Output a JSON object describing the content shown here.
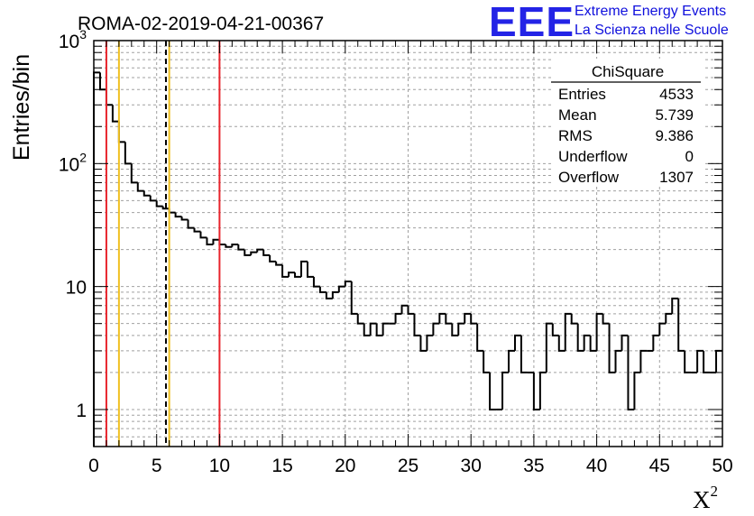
{
  "header": {
    "run_title": "ROMA-02-2019-04-21-00367",
    "logo_text": "EEE",
    "logo_line1": "Extreme Energy Events",
    "logo_line2": "La Scienza nelle Scuole",
    "logo_color": "#2323e6"
  },
  "stats": {
    "title": "ChiSquare",
    "rows": [
      {
        "label": "Entries",
        "value": "4533"
      },
      {
        "label": "Mean",
        "value": "5.739"
      },
      {
        "label": "RMS",
        "value": "9.386"
      },
      {
        "label": "Underflow",
        "value": "0"
      },
      {
        "label": "Overflow",
        "value": "1307"
      }
    ]
  },
  "chart_data": {
    "type": "histogram",
    "title": "ROMA-02-2019-04-21-00367",
    "xlabel": "X",
    "xlabel_superscript": "2",
    "ylabel": "Entries/bin",
    "xlim": [
      0,
      50
    ],
    "ylim": [
      0.5,
      1000
    ],
    "yscale": "log",
    "bin_width": 0.5,
    "grid": true,
    "x_ticks": [
      "0",
      "5",
      "10",
      "15",
      "20",
      "25",
      "30",
      "35",
      "40",
      "45",
      "50"
    ],
    "y_ticks": [
      {
        "value": 1,
        "label": "1"
      },
      {
        "value": 10,
        "label": "10"
      },
      {
        "value": 100,
        "label": "10",
        "exp": "2"
      },
      {
        "value": 1000,
        "label": "10",
        "exp": "3"
      }
    ],
    "values": [
      550,
      400,
      300,
      220,
      150,
      100,
      70,
      60,
      55,
      50,
      45,
      43,
      40,
      37,
      35,
      30,
      28,
      25,
      22,
      24,
      22,
      21,
      22,
      20,
      18,
      19,
      20,
      18,
      16,
      15,
      12,
      13,
      12,
      16,
      12,
      10,
      9,
      8,
      9,
      10,
      11,
      6,
      5,
      4,
      5,
      4,
      5,
      5,
      6,
      7,
      6,
      4,
      3,
      4,
      5,
      6,
      5,
      4,
      5,
      6,
      5,
      3,
      2,
      1,
      1,
      2,
      3,
      4,
      2,
      2,
      1,
      2,
      5,
      4,
      3,
      6,
      5,
      3,
      4,
      3,
      6,
      5,
      2,
      3,
      4,
      1,
      2,
      3,
      3,
      4,
      5,
      6,
      8,
      3,
      2,
      2,
      3,
      2,
      2,
      3
    ],
    "series": [
      {
        "name": "ChiSquare",
        "color": "#000000"
      }
    ],
    "vertical_lines": [
      {
        "x": 1,
        "color": "#e8242c",
        "style": "solid"
      },
      {
        "x": 2,
        "color": "#f0c020",
        "style": "solid"
      },
      {
        "x": 5.739,
        "color": "#000000",
        "style": "dashed"
      },
      {
        "x": 6,
        "color": "#f0c020",
        "style": "solid"
      },
      {
        "x": 10,
        "color": "#e8242c",
        "style": "solid"
      }
    ]
  }
}
